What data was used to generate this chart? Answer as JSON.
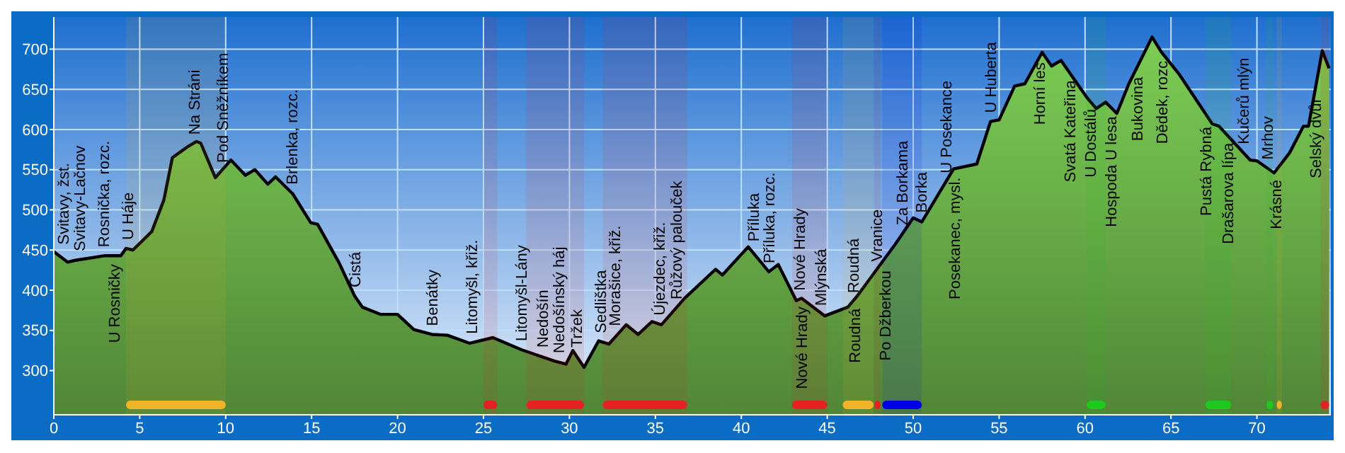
{
  "chart_data": {
    "type": "area",
    "x": [
      0,
      0.8,
      1.2,
      3.0,
      3.9,
      4.2,
      4.6,
      5.7,
      6.4,
      6.9,
      7.75,
      8.3,
      8.55,
      9.4,
      10.3,
      11.15,
      11.7,
      12.45,
      12.9,
      13.9,
      14.95,
      15.35,
      16.6,
      17.5,
      17.95,
      19.0,
      20.0,
      20.95,
      22.0,
      22.9,
      24.2,
      25.55,
      27.2,
      29.1,
      29.8,
      30.2,
      30.85,
      31.7,
      32.3,
      33.3,
      34.0,
      34.8,
      35.35,
      36.7,
      38.5,
      38.9,
      40.4,
      41.6,
      42.15,
      43.2,
      43.5,
      44.85,
      46.2,
      46.75,
      48.95,
      50.0,
      50.5,
      52.35,
      53.7,
      54.5,
      55.0,
      55.9,
      56.5,
      57.5,
      58.05,
      58.6,
      60.1,
      60.65,
      61.2,
      61.85,
      62.55,
      63.9,
      64.45,
      65.5,
      67.4,
      67.8,
      69.6,
      70.0,
      71.0,
      71.9,
      72.7,
      73.0,
      73.8,
      74.2
    ],
    "series": [
      {
        "color": "#7ccd55",
        "values": [
          448,
          435,
          437,
          443,
          443,
          452,
          450,
          473,
          512,
          565,
          578,
          585,
          583,
          540,
          562,
          543,
          550,
          532,
          541,
          520,
          484,
          482,
          434,
          393,
          379,
          370,
          370,
          351,
          345,
          344,
          334,
          341,
          326,
          312,
          308,
          325,
          304,
          337,
          333,
          357,
          345,
          361,
          357,
          390,
          426,
          419,
          454,
          423,
          432,
          387,
          390,
          368,
          379,
          393,
          457,
          490,
          485,
          551,
          557,
          610,
          612,
          654,
          657,
          696,
          679,
          686,
          640,
          626,
          634,
          620,
          657,
          715,
          696,
          668,
          607,
          604,
          562,
          561,
          546,
          571,
          604,
          604,
          698,
          676
        ]
      }
    ],
    "xlim": [
      0,
      74.3
    ],
    "ylim": [
      245,
      740
    ],
    "xticks": [
      0,
      5,
      10,
      15,
      20,
      25,
      30,
      35,
      40,
      45,
      50,
      55,
      60,
      65,
      70
    ],
    "yticks": [
      300,
      350,
      400,
      450,
      500,
      550,
      600,
      650,
      700
    ],
    "grid": true,
    "bands": [
      {
        "axis": "x",
        "from": 4.2,
        "to": 10.0,
        "color": "#f0b428"
      },
      {
        "axis": "x",
        "from": 25.0,
        "to": 25.8,
        "color": "#e42222"
      },
      {
        "axis": "x",
        "from": 27.5,
        "to": 30.85,
        "color": "#e42222"
      },
      {
        "axis": "x",
        "from": 31.95,
        "to": 36.85,
        "color": "#e42222"
      },
      {
        "axis": "x",
        "from": 42.95,
        "to": 45.0,
        "color": "#e42222"
      },
      {
        "axis": "x",
        "from": 45.9,
        "to": 47.7,
        "color": "#f0b428"
      },
      {
        "axis": "x",
        "from": 47.75,
        "to": 48.1,
        "color": "#e42222"
      },
      {
        "axis": "x",
        "from": 48.2,
        "to": 50.5,
        "color": "#0000e6"
      },
      {
        "axis": "x",
        "from": 60.1,
        "to": 61.2,
        "color": "#1ec81e"
      },
      {
        "axis": "x",
        "from": 67.0,
        "to": 68.5,
        "color": "#1ec81e"
      },
      {
        "axis": "x",
        "from": 70.55,
        "to": 70.95,
        "color": "#1ec81e"
      },
      {
        "axis": "x",
        "from": 71.15,
        "to": 71.45,
        "color": "#f0b428"
      },
      {
        "axis": "x",
        "from": 73.7,
        "to": 74.2,
        "color": "#e42222"
      }
    ],
    "annotations": [
      {
        "text": "Svitavy, žst.",
        "x": 0.55,
        "y": 446
      },
      {
        "text": "Svitavy-Lačnov",
        "x": 1.5,
        "y": 438
      },
      {
        "text": "Rosnička, rozc.",
        "x": 2.9,
        "y": 443
      },
      {
        "text": "U Rosničky",
        "x": 3.5,
        "y": 443
      },
      {
        "text": "U Háje",
        "x": 4.3,
        "y": 452
      },
      {
        "text": "Na Stráni",
        "x": 8.15,
        "y": 583
      },
      {
        "text": "Pod Sněžníkem",
        "x": 9.8,
        "y": 548
      },
      {
        "text": "Brlenka, rozc.",
        "x": 13.85,
        "y": 521
      },
      {
        "text": "Čistá",
        "x": 17.5,
        "y": 393
      },
      {
        "text": "Benátky",
        "x": 22.0,
        "y": 345
      },
      {
        "text": "Litomyšl, křiž.",
        "x": 24.3,
        "y": 335
      },
      {
        "text": "Litomyšl-Lány",
        "x": 27.2,
        "y": 326
      },
      {
        "text": "Nedošín",
        "x": 28.4,
        "y": 318
      },
      {
        "text": "Nedošínský háj",
        "x": 29.35,
        "y": 311
      },
      {
        "text": "Tržek",
        "x": 30.4,
        "y": 318
      },
      {
        "text": "Sedlištka",
        "x": 31.8,
        "y": 336
      },
      {
        "text": "Morašice, křiž.",
        "x": 32.6,
        "y": 345
      },
      {
        "text": "Újezdec, křiž.",
        "x": 35.2,
        "y": 358
      },
      {
        "text": "Růžový palouček",
        "x": 36.2,
        "y": 378
      },
      {
        "text": "Příluka",
        "x": 40.7,
        "y": 450
      },
      {
        "text": "Příluka, rozc.",
        "x": 41.6,
        "y": 423
      },
      {
        "text": "Nové Hrady",
        "x": 43.35,
        "y": 389
      },
      {
        "text": "Nové Hrady",
        "x": 43.5,
        "y": 390
      },
      {
        "text": "Mlýnská",
        "x": 44.6,
        "y": 370
      },
      {
        "text": "Roudná",
        "x": 46.5,
        "y": 386
      },
      {
        "text": "Roudná",
        "x": 46.6,
        "y": 388
      },
      {
        "text": "Vranice",
        "x": 47.85,
        "y": 425
      },
      {
        "text": "Po Džberkou",
        "x": 48.35,
        "y": 435
      },
      {
        "text": "Za Borkama",
        "x": 49.35,
        "y": 470
      },
      {
        "text": "Borka",
        "x": 50.45,
        "y": 486
      },
      {
        "text": "U Posekance",
        "x": 51.9,
        "y": 535
      },
      {
        "text": "Posekanec, mysl.",
        "x": 52.4,
        "y": 551
      },
      {
        "text": "U Huberta",
        "x": 54.5,
        "y": 610
      },
      {
        "text": "Horní les",
        "x": 57.35,
        "y": 694
      },
      {
        "text": "Svatá Kateřina",
        "x": 59.1,
        "y": 672
      },
      {
        "text": "U Dostálů",
        "x": 60.3,
        "y": 636
      },
      {
        "text": "Hospoda U lesa",
        "x": 61.5,
        "y": 627
      },
      {
        "text": "Bukovina",
        "x": 63.0,
        "y": 676
      },
      {
        "text": "Dědek, rozc",
        "x": 64.45,
        "y": 696
      },
      {
        "text": "Pustá Rybná",
        "x": 67.0,
        "y": 614
      },
      {
        "text": "Drašarova lípa",
        "x": 68.3,
        "y": 594
      },
      {
        "text": "Kučerů mlýn",
        "x": 69.2,
        "y": 571
      },
      {
        "text": "Mrhov",
        "x": 70.6,
        "y": 552
      },
      {
        "text": "Krásné",
        "x": 71.1,
        "y": 548
      },
      {
        "text": "Selský dvůr",
        "x": 73.4,
        "y": 650
      }
    ]
  }
}
